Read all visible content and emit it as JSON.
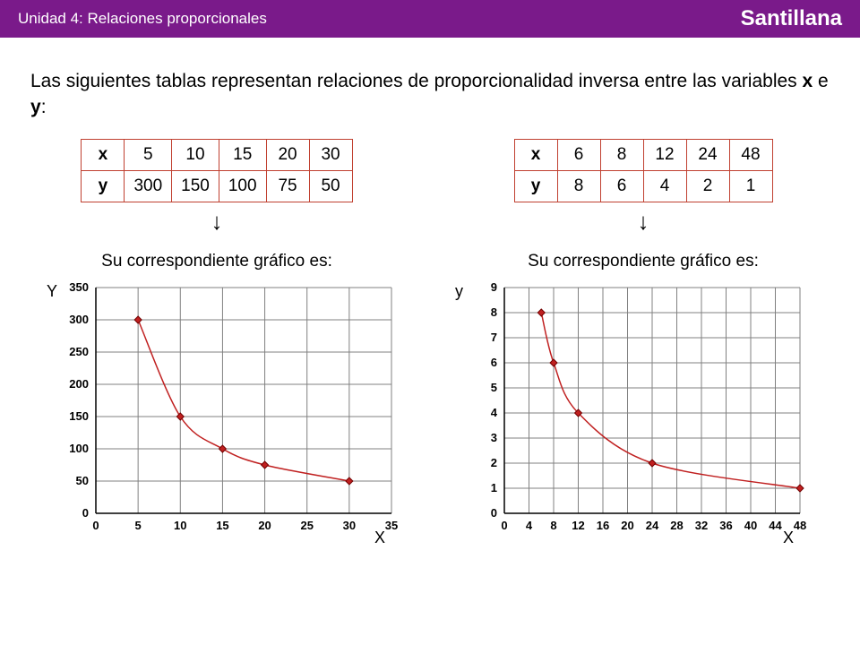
{
  "header": {
    "unit_title": "Unidad 4: Relaciones proporcionales",
    "publisher": "Santillana",
    "bg_color": "#7a1a8a",
    "fg_color": "#ffffff"
  },
  "intro": {
    "text_a": "Las siguientes tablas representan relaciones de proporcionalidad inversa entre las variables ",
    "var1": "x",
    "text_b": " e ",
    "var2": "y",
    "text_c": ":"
  },
  "table_left": {
    "row_x": [
      "x",
      "5",
      "10",
      "15",
      "20",
      "30"
    ],
    "row_y": [
      "y",
      "300",
      "150",
      "100",
      "75",
      "50"
    ],
    "border_color": "#c04030"
  },
  "table_right": {
    "row_x": [
      "x",
      "6",
      "8",
      "12",
      "24",
      "48"
    ],
    "row_y": [
      "y",
      "8",
      "6",
      "4",
      "2",
      "1"
    ],
    "border_color": "#c04030"
  },
  "caption_left": "Su correspondiente gráfico es:",
  "caption_right": "Su correspondiente gráfico es:",
  "chart_left": {
    "type": "scatter-line",
    "y_axis_label": "Y",
    "x_axis_label": "X",
    "xlim": [
      0,
      35
    ],
    "xtick_step": 5,
    "ylim": [
      0,
      350
    ],
    "ytick_step": 50,
    "points": [
      [
        5,
        300
      ],
      [
        10,
        150
      ],
      [
        15,
        100
      ],
      [
        20,
        75
      ],
      [
        30,
        50
      ]
    ],
    "grid_color": "#808080",
    "line_color": "#c02020",
    "marker_color": "#c02020",
    "marker_size": 4,
    "background_color": "#ffffff",
    "tick_fontsize": 13
  },
  "chart_right": {
    "type": "scatter-line",
    "y_axis_label": "y",
    "x_axis_label": "X",
    "xlim": [
      0,
      48
    ],
    "xtick_step": 4,
    "ylim": [
      0,
      9
    ],
    "ytick_step": 1,
    "points": [
      [
        6,
        8
      ],
      [
        8,
        6
      ],
      [
        12,
        4
      ],
      [
        24,
        2
      ],
      [
        48,
        1
      ]
    ],
    "grid_color": "#808080",
    "line_color": "#c02020",
    "marker_color": "#c02020",
    "marker_size": 4,
    "background_color": "#ffffff",
    "tick_fontsize": 13
  }
}
